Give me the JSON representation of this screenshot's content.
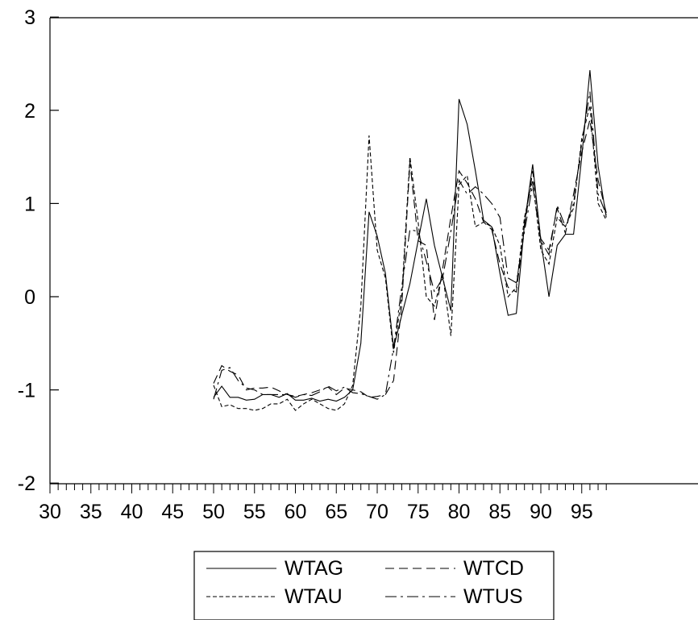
{
  "chart_data": {
    "type": "line",
    "title": "",
    "xlabel": "",
    "ylabel": "",
    "xlim": [
      30,
      98
    ],
    "ylim": [
      -2,
      3
    ],
    "x_ticks": [
      30,
      35,
      40,
      45,
      50,
      55,
      60,
      65,
      70,
      75,
      80,
      85,
      90,
      95
    ],
    "y_ticks": [
      -2,
      -1,
      0,
      1,
      2,
      3
    ],
    "grid": false,
    "legend_position": "bottom",
    "x": [
      50,
      51,
      52,
      53,
      54,
      55,
      56,
      57,
      58,
      59,
      60,
      61,
      62,
      63,
      64,
      65,
      66,
      67,
      68,
      69,
      70,
      71,
      72,
      73,
      74,
      75,
      76,
      77,
      78,
      79,
      80,
      81,
      82,
      83,
      84,
      85,
      86,
      87,
      88,
      89,
      90,
      91,
      92,
      93,
      94,
      95,
      96,
      97,
      98
    ],
    "series": [
      {
        "name": "WTAG",
        "dash": "solid",
        "values": [
          -1.08,
          -0.96,
          -1.08,
          -1.08,
          -1.11,
          -1.1,
          -1.05,
          -1.05,
          -1.08,
          -1.04,
          -1.11,
          -1.11,
          -1.09,
          -1.12,
          -1.1,
          -1.12,
          -1.08,
          -1.0,
          -0.5,
          0.91,
          0.65,
          0.25,
          -0.55,
          -0.2,
          0.14,
          0.6,
          1.05,
          0.55,
          0.2,
          -0.15,
          2.12,
          1.85,
          1.35,
          0.82,
          0.75,
          0.25,
          -0.2,
          -0.18,
          0.78,
          1.42,
          0.6,
          0.0,
          0.55,
          0.67,
          0.67,
          1.5,
          2.43,
          1.4,
          0.85
        ]
      },
      {
        "name": "WTCD",
        "dash": "long",
        "values": [
          -0.93,
          -0.74,
          -0.8,
          -0.84,
          -1.0,
          -0.98,
          -0.98,
          -0.97,
          -1.01,
          -1.05,
          -1.07,
          -1.05,
          -1.03,
          -1.0,
          -0.97,
          -1.05,
          -0.98,
          -1.0,
          -1.02,
          -1.08,
          -1.07,
          -1.05,
          -0.9,
          -0.1,
          1.45,
          0.6,
          0.55,
          -0.25,
          0.3,
          0.85,
          1.35,
          1.22,
          1.05,
          0.8,
          0.72,
          0.35,
          0.1,
          0.05,
          0.75,
          1.35,
          0.62,
          0.5,
          0.95,
          0.68,
          1.1,
          1.55,
          1.9,
          1.25,
          0.9
        ]
      },
      {
        "name": "WTAU",
        "dash": "short",
        "values": [
          -0.95,
          -1.18,
          -1.16,
          -1.2,
          -1.2,
          -1.22,
          -1.2,
          -1.15,
          -1.15,
          -1.1,
          -1.22,
          -1.15,
          -1.1,
          -1.15,
          -1.2,
          -1.22,
          -1.15,
          -0.95,
          -0.1,
          1.73,
          0.5,
          0.2,
          -0.6,
          0.0,
          1.5,
          0.8,
          0.0,
          -0.1,
          0.25,
          -0.42,
          1.2,
          1.3,
          0.75,
          0.8,
          0.75,
          0.55,
          0.0,
          0.1,
          0.85,
          1.25,
          0.5,
          0.35,
          0.85,
          0.75,
          0.95,
          1.7,
          2.05,
          1.0,
          0.82
        ]
      },
      {
        "name": "WTUS",
        "dash": "dashdot",
        "values": [
          -1.1,
          -0.79,
          -0.76,
          -0.9,
          -0.98,
          -1.0,
          -1.05,
          -1.05,
          -1.05,
          -1.05,
          -1.08,
          -1.05,
          -1.06,
          -1.02,
          -0.96,
          -1.01,
          -0.97,
          -1.03,
          -1.04,
          -1.07,
          -1.1,
          -1.05,
          -0.55,
          0.1,
          0.72,
          0.7,
          0.38,
          0.05,
          0.2,
          0.7,
          1.25,
          1.1,
          1.18,
          1.1,
          1.0,
          0.85,
          0.2,
          0.15,
          0.7,
          1.2,
          0.6,
          0.45,
          0.98,
          0.75,
          1.0,
          1.65,
          2.2,
          1.1,
          0.88
        ]
      }
    ]
  }
}
